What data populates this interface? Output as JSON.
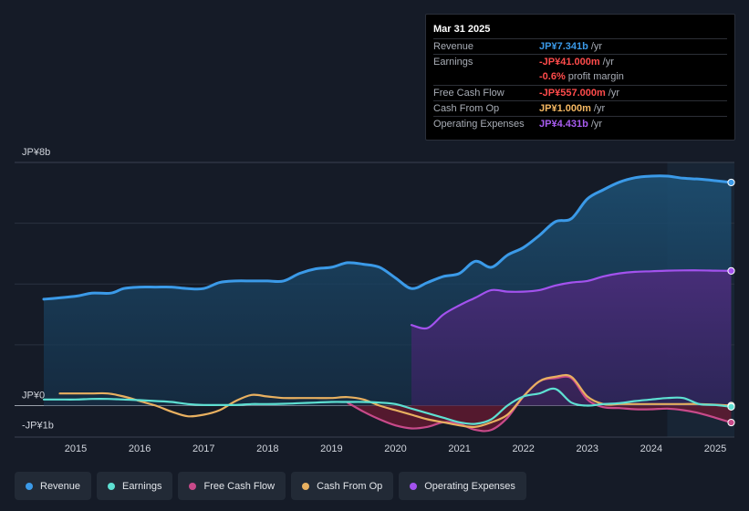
{
  "tooltip": {
    "date": "Mar 31 2025",
    "rows": [
      {
        "label": "Revenue",
        "value": "JP¥7.341b",
        "unit": "/yr",
        "color": "#3b9ae8"
      },
      {
        "label": "Earnings",
        "value": "-JP¥41.000m",
        "unit": "/yr",
        "color": "#ff4b4b"
      },
      {
        "label": "",
        "value": "-0.6%",
        "unit": "profit margin",
        "color": "#ff4b4b"
      },
      {
        "label": "Free Cash Flow",
        "value": "-JP¥557.000m",
        "unit": "/yr",
        "color": "#ff4b4b"
      },
      {
        "label": "Cash From Op",
        "value": "JP¥1.000m",
        "unit": "/yr",
        "color": "#f5b862"
      },
      {
        "label": "Operating Expenses",
        "value": "JP¥4.431b",
        "unit": "/yr",
        "color": "#a85cf0"
      }
    ]
  },
  "legend": [
    {
      "label": "Revenue",
      "color": "#3b9ae8"
    },
    {
      "label": "Earnings",
      "color": "#5ee0d2"
    },
    {
      "label": "Free Cash Flow",
      "color": "#c84a8a"
    },
    {
      "label": "Cash From Op",
      "color": "#e8b060"
    },
    {
      "label": "Operating Expenses",
      "color": "#a352ee"
    }
  ],
  "chart_data": {
    "type": "line",
    "title": "",
    "xlabel": "",
    "ylabel": "",
    "y_tick_labels": [
      "JP¥8b",
      "JP¥0",
      "-JP¥1b"
    ],
    "y_tick_values": [
      8,
      0,
      -1
    ],
    "ylim": [
      -1,
      8
    ],
    "xlim": [
      2014.5,
      2025.3
    ],
    "x_ticks": [
      2015,
      2016,
      2017,
      2018,
      2019,
      2020,
      2021,
      2022,
      2023,
      2024,
      2025
    ],
    "x_tick_labels": [
      "2015",
      "2016",
      "2017",
      "2018",
      "2019",
      "2020",
      "2021",
      "2022",
      "2023",
      "2024",
      "2025"
    ],
    "highlight_start": 2024.25,
    "series": [
      {
        "name": "Revenue",
        "color": "#3b9ae8",
        "fill": true,
        "x": [
          2014.5,
          2015.0,
          2015.25,
          2015.55,
          2015.75,
          2016.0,
          2016.25,
          2016.5,
          2016.75,
          2017.0,
          2017.25,
          2017.5,
          2017.75,
          2018.0,
          2018.25,
          2018.5,
          2018.75,
          2019.0,
          2019.25,
          2019.5,
          2019.75,
          2020.0,
          2020.25,
          2020.5,
          2020.75,
          2021.0,
          2021.25,
          2021.5,
          2021.75,
          2022.0,
          2022.25,
          2022.5,
          2022.75,
          2023.0,
          2023.25,
          2023.5,
          2023.75,
          2024.0,
          2024.25,
          2024.5,
          2024.75,
          2025.0,
          2025.25
        ],
        "y": [
          3.5,
          3.6,
          3.7,
          3.7,
          3.85,
          3.9,
          3.9,
          3.9,
          3.85,
          3.85,
          4.05,
          4.1,
          4.1,
          4.1,
          4.1,
          4.35,
          4.5,
          4.55,
          4.7,
          4.65,
          4.55,
          4.2,
          3.85,
          4.05,
          4.25,
          4.35,
          4.75,
          4.55,
          4.95,
          5.2,
          5.6,
          6.05,
          6.15,
          6.8,
          7.1,
          7.35,
          7.5,
          7.55,
          7.55,
          7.48,
          7.45,
          7.4,
          7.341
        ]
      },
      {
        "name": "Earnings",
        "color": "#5ee0d2",
        "fill": false,
        "x": [
          2014.5,
          2014.75,
          2015.0,
          2015.25,
          2015.5,
          2015.75,
          2016.0,
          2016.25,
          2016.5,
          2016.75,
          2017.0,
          2017.25,
          2017.5,
          2017.75,
          2018.0,
          2018.25,
          2018.5,
          2018.75,
          2019.0,
          2019.25,
          2019.5,
          2019.75,
          2020.0,
          2020.25,
          2020.5,
          2020.75,
          2021.0,
          2021.25,
          2021.5,
          2021.75,
          2022.0,
          2022.25,
          2022.5,
          2022.75,
          2023.0,
          2023.25,
          2023.5,
          2023.75,
          2024.0,
          2024.25,
          2024.5,
          2024.75,
          2025.0,
          2025.25
        ],
        "y": [
          0.2,
          0.2,
          0.2,
          0.22,
          0.22,
          0.2,
          0.18,
          0.15,
          0.12,
          0.05,
          0.02,
          0.02,
          0.02,
          0.05,
          0.05,
          0.06,
          0.08,
          0.1,
          0.12,
          0.12,
          0.12,
          0.1,
          0.05,
          -0.1,
          -0.25,
          -0.4,
          -0.55,
          -0.6,
          -0.45,
          0.0,
          0.3,
          0.4,
          0.55,
          0.1,
          0.0,
          0.05,
          0.08,
          0.15,
          0.2,
          0.25,
          0.25,
          0.05,
          0.02,
          -0.041
        ]
      },
      {
        "name": "Free Cash Flow",
        "color": "#c84a8a",
        "fill": true,
        "x": [
          2019.25,
          2019.5,
          2019.75,
          2020.0,
          2020.25,
          2020.5,
          2020.75,
          2021.0,
          2021.25,
          2021.5,
          2021.75,
          2022.0,
          2022.25,
          2022.5,
          2022.75,
          2023.0,
          2023.25,
          2023.5,
          2023.75,
          2024.0,
          2024.25,
          2024.5,
          2024.75,
          2025.0,
          2025.25
        ],
        "y": [
          0.1,
          -0.2,
          -0.45,
          -0.65,
          -0.75,
          -0.7,
          -0.55,
          -0.6,
          -0.8,
          -0.8,
          -0.4,
          0.3,
          0.8,
          0.9,
          0.9,
          0.2,
          -0.05,
          -0.08,
          -0.12,
          -0.12,
          -0.1,
          -0.15,
          -0.25,
          -0.4,
          -0.557
        ]
      },
      {
        "name": "Cash From Op",
        "color": "#e8b060",
        "fill": false,
        "x": [
          2014.75,
          2015.0,
          2015.25,
          2015.5,
          2015.75,
          2016.0,
          2016.25,
          2016.5,
          2016.75,
          2017.0,
          2017.25,
          2017.5,
          2017.75,
          2018.0,
          2018.25,
          2018.5,
          2018.75,
          2019.0,
          2019.25,
          2019.5,
          2019.75,
          2020.0,
          2020.25,
          2020.5,
          2020.75,
          2021.0,
          2021.25,
          2021.5,
          2021.75,
          2022.0,
          2022.25,
          2022.5,
          2022.75,
          2023.0,
          2023.25,
          2023.5,
          2023.75,
          2024.0,
          2024.25,
          2024.5,
          2024.75,
          2025.0,
          2025.25
        ],
        "y": [
          0.4,
          0.4,
          0.4,
          0.4,
          0.3,
          0.15,
          0.0,
          -0.2,
          -0.35,
          -0.3,
          -0.15,
          0.15,
          0.35,
          0.3,
          0.25,
          0.25,
          0.25,
          0.25,
          0.28,
          0.2,
          0.0,
          -0.15,
          -0.3,
          -0.45,
          -0.55,
          -0.65,
          -0.7,
          -0.55,
          -0.3,
          0.3,
          0.8,
          0.95,
          0.95,
          0.3,
          0.05,
          0.05,
          0.05,
          0.05,
          0.05,
          0.05,
          0.05,
          0.03,
          0.001
        ]
      },
      {
        "name": "Operating Expenses",
        "color": "#a352ee",
        "fill": true,
        "x": [
          2020.25,
          2020.5,
          2020.75,
          2021.0,
          2021.25,
          2021.5,
          2021.75,
          2022.0,
          2022.25,
          2022.5,
          2022.75,
          2023.0,
          2023.25,
          2023.5,
          2023.75,
          2024.0,
          2024.25,
          2024.5,
          2024.75,
          2025.0,
          2025.25
        ],
        "y": [
          2.65,
          2.55,
          3.0,
          3.3,
          3.55,
          3.8,
          3.75,
          3.75,
          3.8,
          3.95,
          4.05,
          4.1,
          4.25,
          4.35,
          4.4,
          4.42,
          4.44,
          4.45,
          4.45,
          4.44,
          4.431
        ]
      }
    ]
  }
}
